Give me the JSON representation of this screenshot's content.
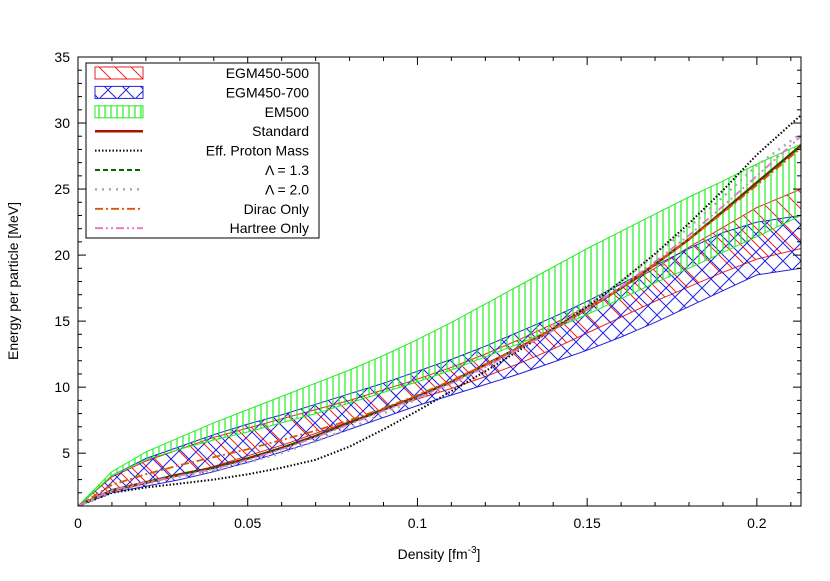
{
  "chart_data": {
    "type": "line",
    "title": "",
    "xlabel": "Density [fm",
    "xlabel_sup": "-3",
    "xlabel_end": "]",
    "ylabel": "Energy per particle [MeV]",
    "xlim": [
      0,
      0.213
    ],
    "ylim": [
      1,
      35
    ],
    "xticks": [
      0,
      0.05,
      0.1,
      0.15,
      0.2
    ],
    "xtick_labels": [
      "0",
      "0.05",
      "0.1",
      "0.15",
      "0.2"
    ],
    "yticks": [
      5,
      10,
      15,
      20,
      25,
      30,
      35
    ],
    "ytick_labels": [
      "5",
      "10",
      "15",
      "20",
      "25",
      "30",
      "35"
    ],
    "grid": false,
    "legend_position": "top-left",
    "bands": [
      {
        "name": "EGM450-500",
        "color": "#ee2222",
        "hatch": "diagonal-down",
        "x": [
          0,
          0.01,
          0.02,
          0.03,
          0.04,
          0.05,
          0.06,
          0.07,
          0.08,
          0.09,
          0.1,
          0.11,
          0.12,
          0.13,
          0.14,
          0.15,
          0.16,
          0.17,
          0.18,
          0.19,
          0.2,
          0.213
        ],
        "lower": [
          1.0,
          2.1,
          2.7,
          3.3,
          4.0,
          4.8,
          5.6,
          6.5,
          7.4,
          8.3,
          9.1,
          9.9,
          10.8,
          11.8,
          12.9,
          14.1,
          15.3,
          16.5,
          17.6,
          18.7,
          19.7,
          20.5
        ],
        "upper": [
          1.0,
          3.2,
          4.4,
          5.3,
          6.2,
          6.9,
          7.6,
          8.3,
          9.0,
          9.8,
          10.6,
          11.5,
          12.5,
          13.6,
          14.8,
          16.1,
          17.5,
          19.0,
          20.6,
          22.1,
          23.6,
          25.0
        ]
      },
      {
        "name": "EGM450-700",
        "color": "#2222dd",
        "hatch": "crosshatch",
        "x": [
          0,
          0.01,
          0.02,
          0.03,
          0.04,
          0.05,
          0.06,
          0.07,
          0.08,
          0.09,
          0.1,
          0.11,
          0.12,
          0.13,
          0.14,
          0.15,
          0.16,
          0.17,
          0.18,
          0.19,
          0.2,
          0.213
        ],
        "lower": [
          1.0,
          2.0,
          2.5,
          3.0,
          3.6,
          4.3,
          5.1,
          5.9,
          6.8,
          7.7,
          8.6,
          9.4,
          10.2,
          11.0,
          11.9,
          12.8,
          13.8,
          14.9,
          16.1,
          17.3,
          18.5,
          19.0
        ],
        "upper": [
          1.0,
          3.3,
          4.6,
          5.5,
          6.4,
          7.2,
          7.9,
          8.7,
          9.5,
          10.3,
          11.2,
          12.1,
          13.1,
          14.2,
          15.3,
          16.5,
          17.8,
          19.2,
          20.5,
          21.7,
          22.5,
          23.0
        ]
      },
      {
        "name": "EM500",
        "color": "#22ee22",
        "hatch": "vertical",
        "x": [
          0,
          0.01,
          0.02,
          0.03,
          0.04,
          0.05,
          0.06,
          0.07,
          0.08,
          0.09,
          0.1,
          0.11,
          0.12,
          0.13,
          0.14,
          0.15,
          0.16,
          0.17,
          0.18,
          0.19,
          0.2,
          0.213
        ],
        "lower": [
          1.0,
          3.3,
          4.5,
          5.3,
          6.0,
          6.6,
          7.3,
          8.0,
          8.8,
          9.6,
          10.4,
          11.3,
          12.3,
          13.3,
          14.4,
          15.5,
          16.7,
          17.9,
          19.0,
          20.2,
          21.4,
          23.0
        ],
        "upper": [
          1.0,
          3.6,
          5.1,
          6.2,
          7.3,
          8.3,
          9.3,
          10.3,
          11.3,
          12.4,
          13.6,
          14.9,
          16.3,
          17.7,
          19.1,
          20.5,
          21.8,
          23.1,
          24.4,
          25.6,
          26.9,
          28.4
        ]
      }
    ],
    "series": [
      {
        "name": "Standard",
        "color": "#aa1100",
        "width": 2.5,
        "dash": "",
        "x": [
          0,
          0.01,
          0.02,
          0.03,
          0.04,
          0.05,
          0.06,
          0.07,
          0.08,
          0.09,
          0.1,
          0.11,
          0.12,
          0.13,
          0.14,
          0.15,
          0.16,
          0.17,
          0.18,
          0.19,
          0.2,
          0.213
        ],
        "y": [
          1.0,
          2.2,
          2.8,
          3.4,
          3.9,
          4.6,
          5.4,
          6.3,
          7.3,
          8.3,
          9.3,
          10.4,
          11.7,
          13.0,
          14.4,
          15.9,
          17.5,
          19.3,
          21.2,
          23.3,
          25.5,
          28.3
        ]
      },
      {
        "name": "Eff. Proton Mass",
        "color": "#000000",
        "width": 2,
        "dash": "1.5,2",
        "x": [
          0,
          0.01,
          0.02,
          0.03,
          0.04,
          0.05,
          0.06,
          0.07,
          0.08,
          0.09,
          0.1,
          0.11,
          0.12,
          0.13,
          0.14,
          0.15,
          0.16,
          0.17,
          0.18,
          0.19,
          0.2,
          0.213
        ],
        "y": [
          1.0,
          2.0,
          2.4,
          2.7,
          3.0,
          3.4,
          3.9,
          4.5,
          5.5,
          6.8,
          8.2,
          9.7,
          11.2,
          12.8,
          14.4,
          16.1,
          18.0,
          20.1,
          22.4,
          24.9,
          27.6,
          30.6
        ]
      },
      {
        "name": "Λ = 1.3",
        "color": "#006600",
        "width": 2,
        "dash": "5,3",
        "x": [
          0,
          0.01,
          0.02,
          0.03,
          0.04,
          0.05,
          0.06,
          0.07,
          0.08,
          0.09,
          0.1,
          0.11,
          0.12,
          0.13,
          0.14,
          0.15,
          0.16,
          0.17,
          0.18,
          0.19,
          0.2,
          0.213
        ],
        "y": [
          1.0,
          2.2,
          2.8,
          3.4,
          3.9,
          4.6,
          5.4,
          6.3,
          7.3,
          8.3,
          9.3,
          10.4,
          11.7,
          13.0,
          14.4,
          15.9,
          17.5,
          19.3,
          21.2,
          23.3,
          25.5,
          28.3
        ]
      },
      {
        "name": "Λ = 2.0",
        "color": "#aaaaaa",
        "width": 2.5,
        "dash": "2,5",
        "x": [
          0,
          0.01,
          0.02,
          0.03,
          0.04,
          0.05,
          0.06,
          0.07,
          0.08,
          0.09,
          0.1,
          0.11,
          0.12,
          0.13,
          0.14,
          0.15,
          0.16,
          0.17,
          0.18,
          0.19,
          0.2,
          0.213
        ],
        "y": [
          1.0,
          2.1,
          2.7,
          3.2,
          3.7,
          4.3,
          5.0,
          5.9,
          6.9,
          8.0,
          9.1,
          10.3,
          11.6,
          13.0,
          14.6,
          16.2,
          18.0,
          20.0,
          22.1,
          24.4,
          26.8,
          29.2
        ]
      },
      {
        "name": "Dirac Only",
        "color": "#dd5500",
        "width": 1.8,
        "dash": "8,3,2,3",
        "x": [
          0,
          0.01,
          0.02,
          0.03,
          0.04,
          0.05,
          0.06,
          0.07,
          0.08,
          0.09,
          0.1,
          0.11,
          0.12,
          0.13,
          0.14,
          0.15,
          0.16,
          0.17,
          0.18,
          0.19,
          0.2,
          0.213
        ],
        "y": [
          1.0,
          2.6,
          3.4,
          4.1,
          4.7,
          5.3,
          6.0,
          6.7,
          7.5,
          8.4,
          9.4,
          10.5,
          11.7,
          13.0,
          14.4,
          15.9,
          17.5,
          19.3,
          21.2,
          23.2,
          25.3,
          28.1
        ]
      },
      {
        "name": "Hartree Only",
        "color": "#dd77cc",
        "width": 1.8,
        "dash": "8,3,2,3,2,3",
        "x": [
          0,
          0.01,
          0.02,
          0.03,
          0.04,
          0.05,
          0.06,
          0.07,
          0.08,
          0.09,
          0.1,
          0.11,
          0.12,
          0.13,
          0.14,
          0.15,
          0.16,
          0.17,
          0.18,
          0.19,
          0.2,
          0.213
        ],
        "y": [
          1.0,
          2.2,
          2.8,
          3.3,
          3.8,
          4.5,
          5.3,
          6.2,
          7.2,
          8.2,
          9.2,
          10.3,
          11.5,
          12.9,
          14.3,
          15.9,
          17.6,
          19.5,
          21.5,
          23.7,
          26.0,
          29.0
        ]
      }
    ],
    "legend": [
      {
        "label": "EGM450-500",
        "kind": "band",
        "ref": 0
      },
      {
        "label": "EGM450-700",
        "kind": "band",
        "ref": 1
      },
      {
        "label": "EM500",
        "kind": "band",
        "ref": 2
      },
      {
        "label": "Standard",
        "kind": "line",
        "ref": 0
      },
      {
        "label": "Eff. Proton Mass",
        "kind": "line",
        "ref": 1
      },
      {
        "label": "Λ = 1.3",
        "kind": "line",
        "ref": 2
      },
      {
        "label": "Λ = 2.0",
        "kind": "line",
        "ref": 3
      },
      {
        "label": "Dirac Only",
        "kind": "line",
        "ref": 4
      },
      {
        "label": "Hartree Only",
        "kind": "line",
        "ref": 5
      }
    ]
  }
}
